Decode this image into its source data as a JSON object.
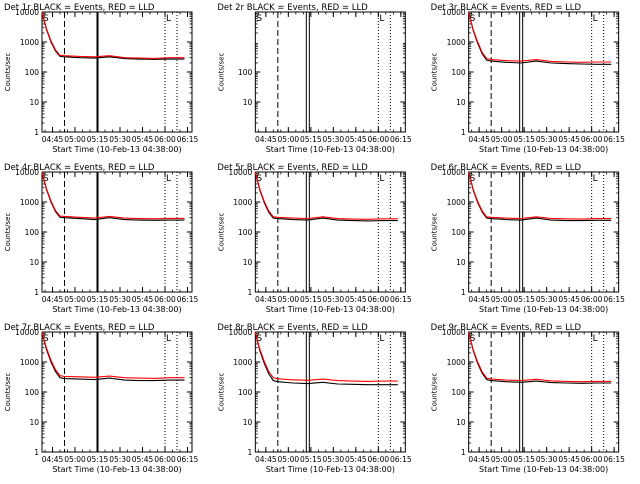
{
  "chart_data": [
    {
      "type": "line",
      "title": "Det 1r BLACK = Events, RED = LLD",
      "xlabel": "Start Time (10-Feb-13 04:38:00)",
      "ylabel": "Counts/sec",
      "yscale": "log",
      "ylim": [
        1,
        10000
      ],
      "xlim_minutes": [
        0,
        100
      ],
      "x_ticks": [
        "04:45",
        "05:00",
        "05:15",
        "05:30",
        "05:45",
        "06:00",
        "06:15"
      ],
      "y_ticks": [
        "1",
        "10",
        "100",
        "1000",
        "10000"
      ],
      "corner_marks": [
        "S",
        "L"
      ],
      "vlines": [
        {
          "minutes": 15,
          "style": "dashed"
        },
        {
          "minutes": 37,
          "style": "solid-thick"
        },
        {
          "minutes": 82,
          "style": "dotted"
        },
        {
          "minutes": 90,
          "style": "dotted"
        }
      ],
      "series": [
        {
          "color": "#000000",
          "x": [
            0,
            3,
            6,
            9,
            12,
            15,
            25,
            35,
            45,
            55,
            65,
            75,
            85,
            95
          ],
          "values": [
            10000,
            2600,
            1000,
            500,
            330,
            320,
            300,
            290,
            320,
            280,
            270,
            265,
            270,
            270
          ]
        },
        {
          "color": "#ff0000",
          "x": [
            0,
            3,
            6,
            9,
            12,
            15,
            25,
            35,
            45,
            55,
            65,
            75,
            85,
            95
          ],
          "values": [
            10000,
            2800,
            1100,
            550,
            360,
            350,
            330,
            320,
            350,
            300,
            290,
            285,
            300,
            300
          ]
        }
      ]
    },
    {
      "type": "line",
      "title": "Det 2r BLACK = Events, RED = LLD",
      "xlabel": "Start Time (10-Feb-13 04:38:00)",
      "ylabel": "Counts/sec",
      "yscale": "log",
      "ylim": [
        1,
        10000
      ],
      "xlim_minutes": [
        0,
        100
      ],
      "x_ticks": [
        "04:45",
        "05:00",
        "05:15",
        "05:30",
        "05:45",
        "06:00",
        "06:15"
      ],
      "y_ticks": [
        "10",
        "100"
      ],
      "corner_marks": [
        "S",
        "L"
      ],
      "vlines": [
        {
          "minutes": 15,
          "style": "dashed"
        },
        {
          "minutes": 34,
          "style": "solid"
        },
        {
          "minutes": 36,
          "style": "solid"
        },
        {
          "minutes": 82,
          "style": "dotted"
        },
        {
          "minutes": 90,
          "style": "dotted"
        }
      ],
      "series": []
    },
    {
      "type": "line",
      "title": "Det 3r BLACK = Events, RED = LLD",
      "xlabel": "Start Time (10-Feb-13 04:38:00)",
      "ylabel": "Counts/sec",
      "yscale": "log",
      "ylim": [
        1,
        10000
      ],
      "xlim_minutes": [
        0,
        100
      ],
      "x_ticks": [
        "04:45",
        "05:00",
        "05:15",
        "05:30",
        "05:45",
        "06:00",
        "06:15"
      ],
      "y_ticks": [
        "1",
        "10",
        "100",
        "1000",
        "10000"
      ],
      "corner_marks": [
        "S",
        "L"
      ],
      "vlines": [
        {
          "minutes": 15,
          "style": "dashed"
        },
        {
          "minutes": 34,
          "style": "solid"
        },
        {
          "minutes": 36,
          "style": "solid"
        },
        {
          "minutes": 82,
          "style": "dotted"
        },
        {
          "minutes": 90,
          "style": "dotted"
        }
      ],
      "series": [
        {
          "color": "#000000",
          "x": [
            0,
            3,
            6,
            9,
            12,
            15,
            25,
            35,
            45,
            55,
            65,
            75,
            85,
            95
          ],
          "values": [
            10000,
            2400,
            900,
            400,
            250,
            230,
            210,
            200,
            230,
            200,
            190,
            185,
            180,
            180
          ]
        },
        {
          "color": "#ff0000",
          "x": [
            0,
            3,
            6,
            9,
            12,
            15,
            25,
            35,
            45,
            55,
            65,
            75,
            85,
            95
          ],
          "values": [
            10000,
            2600,
            1000,
            450,
            280,
            260,
            240,
            230,
            260,
            225,
            215,
            210,
            215,
            215
          ]
        }
      ]
    },
    {
      "type": "line",
      "title": "Det 4r BLACK = Events, RED = LLD",
      "xlabel": "Start Time (10-Feb-13 04:38:00)",
      "ylabel": "Counts/sec",
      "yscale": "log",
      "ylim": [
        1,
        10000
      ],
      "xlim_minutes": [
        0,
        100
      ],
      "x_ticks": [
        "04:45",
        "05:00",
        "05:15",
        "05:30",
        "05:45",
        "06:00",
        "06:15"
      ],
      "y_ticks": [
        "1",
        "10",
        "100",
        "1000",
        "10000"
      ],
      "corner_marks": [
        "S",
        "L"
      ],
      "vlines": [
        {
          "minutes": 15,
          "style": "dashed"
        },
        {
          "minutes": 37,
          "style": "solid-thick"
        },
        {
          "minutes": 82,
          "style": "dotted"
        },
        {
          "minutes": 90,
          "style": "dotted"
        }
      ],
      "series": [
        {
          "color": "#000000",
          "x": [
            0,
            3,
            6,
            9,
            12,
            15,
            25,
            35,
            45,
            55,
            65,
            75,
            85,
            95
          ],
          "values": [
            10000,
            2600,
            1000,
            480,
            310,
            300,
            280,
            260,
            300,
            260,
            250,
            245,
            250,
            250
          ]
        },
        {
          "color": "#ff0000",
          "x": [
            0,
            3,
            6,
            9,
            12,
            15,
            25,
            35,
            45,
            55,
            65,
            75,
            85,
            95
          ],
          "values": [
            10000,
            2800,
            1100,
            520,
            340,
            330,
            310,
            290,
            330,
            290,
            280,
            275,
            285,
            285
          ]
        }
      ]
    },
    {
      "type": "line",
      "title": "Det 5r BLACK = Events, RED = LLD",
      "xlabel": "Start Time (10-Feb-13 04:38:00)",
      "ylabel": "Counts/sec",
      "yscale": "log",
      "ylim": [
        1,
        10000
      ],
      "xlim_minutes": [
        0,
        100
      ],
      "x_ticks": [
        "04:45",
        "05:00",
        "05:15",
        "05:30",
        "05:45",
        "06:00",
        "06:15"
      ],
      "y_ticks": [
        "1",
        "10",
        "100",
        "1000",
        "10000"
      ],
      "corner_marks": [
        "S",
        "L"
      ],
      "vlines": [
        {
          "minutes": 15,
          "style": "dashed"
        },
        {
          "minutes": 34,
          "style": "solid"
        },
        {
          "minutes": 36,
          "style": "solid"
        },
        {
          "minutes": 82,
          "style": "dotted"
        },
        {
          "minutes": 90,
          "style": "dotted"
        }
      ],
      "series": [
        {
          "color": "#000000",
          "x": [
            0,
            3,
            6,
            9,
            12,
            15,
            25,
            35,
            45,
            55,
            65,
            75,
            85,
            95
          ],
          "values": [
            10000,
            2500,
            950,
            450,
            290,
            280,
            260,
            250,
            290,
            250,
            240,
            235,
            240,
            240
          ]
        },
        {
          "color": "#ff0000",
          "x": [
            0,
            3,
            6,
            9,
            12,
            15,
            25,
            35,
            45,
            55,
            65,
            75,
            85,
            95
          ],
          "values": [
            10000,
            2700,
            1050,
            500,
            320,
            310,
            290,
            280,
            320,
            280,
            270,
            265,
            275,
            275
          ]
        }
      ]
    },
    {
      "type": "line",
      "title": "Det 6r BLACK = Events, RED = LLD",
      "xlabel": "Start Time (10-Feb-13 04:38:00)",
      "ylabel": "Counts/sec",
      "yscale": "log",
      "ylim": [
        1,
        10000
      ],
      "xlim_minutes": [
        0,
        100
      ],
      "x_ticks": [
        "04:45",
        "05:00",
        "05:15",
        "05:30",
        "05:45",
        "06:00",
        "06:15"
      ],
      "y_ticks": [
        "1",
        "10",
        "100",
        "1000",
        "10000"
      ],
      "corner_marks": [
        "S",
        "L"
      ],
      "vlines": [
        {
          "minutes": 15,
          "style": "dashed"
        },
        {
          "minutes": 34,
          "style": "solid"
        },
        {
          "minutes": 36,
          "style": "solid"
        },
        {
          "minutes": 82,
          "style": "dotted"
        },
        {
          "minutes": 90,
          "style": "dotted"
        }
      ],
      "series": [
        {
          "color": "#000000",
          "x": [
            0,
            3,
            6,
            9,
            12,
            15,
            25,
            35,
            45,
            55,
            65,
            75,
            85,
            95
          ],
          "values": [
            10000,
            2500,
            950,
            460,
            290,
            280,
            260,
            250,
            290,
            250,
            240,
            240,
            245,
            245
          ]
        },
        {
          "color": "#ff0000",
          "x": [
            0,
            3,
            6,
            9,
            12,
            15,
            25,
            35,
            45,
            55,
            65,
            75,
            85,
            95
          ],
          "values": [
            10000,
            2700,
            1050,
            510,
            320,
            310,
            290,
            280,
            320,
            285,
            275,
            270,
            280,
            280
          ]
        }
      ]
    },
    {
      "type": "line",
      "title": "Det 7r BLACK = Events, RED = LLD",
      "xlabel": "Start Time (10-Feb-13 04:38:00)",
      "ylabel": "Counts/sec",
      "yscale": "log",
      "ylim": [
        1,
        10000
      ],
      "xlim_minutes": [
        0,
        100
      ],
      "x_ticks": [
        "04:45",
        "05:00",
        "05:15",
        "05:30",
        "05:45",
        "06:00",
        "06:15"
      ],
      "y_ticks": [
        "1",
        "10",
        "100",
        "1000",
        "10000"
      ],
      "corner_marks": [
        "S",
        "L"
      ],
      "vlines": [
        {
          "minutes": 15,
          "style": "dashed"
        },
        {
          "minutes": 37,
          "style": "solid-thick"
        },
        {
          "minutes": 82,
          "style": "dotted"
        },
        {
          "minutes": 90,
          "style": "dotted"
        }
      ],
      "series": [
        {
          "color": "#000000",
          "x": [
            0,
            3,
            6,
            9,
            12,
            15,
            25,
            35,
            45,
            55,
            65,
            75,
            85,
            95
          ],
          "values": [
            10000,
            2600,
            1000,
            480,
            300,
            280,
            270,
            260,
            290,
            250,
            240,
            240,
            250,
            250
          ]
        },
        {
          "color": "#ff0000",
          "x": [
            0,
            3,
            6,
            9,
            12,
            15,
            25,
            35,
            45,
            55,
            65,
            75,
            85,
            95
          ],
          "values": [
            10000,
            2900,
            1150,
            560,
            350,
            330,
            320,
            310,
            340,
            300,
            290,
            285,
            300,
            300
          ]
        }
      ]
    },
    {
      "type": "line",
      "title": "Det 8r BLACK = Events, RED = LLD",
      "xlabel": "Start Time (10-Feb-13 04:38:00)",
      "ylabel": "Counts/sec",
      "yscale": "log",
      "ylim": [
        1,
        10000
      ],
      "xlim_minutes": [
        0,
        100
      ],
      "x_ticks": [
        "04:45",
        "05:00",
        "05:15",
        "05:30",
        "05:45",
        "06:00",
        "06:15"
      ],
      "y_ticks": [
        "1",
        "10",
        "100",
        "1000",
        "10000"
      ],
      "corner_marks": [
        "S",
        "L"
      ],
      "vlines": [
        {
          "minutes": 15,
          "style": "dashed"
        },
        {
          "minutes": 34,
          "style": "solid"
        },
        {
          "minutes": 36,
          "style": "solid"
        },
        {
          "minutes": 82,
          "style": "dotted"
        },
        {
          "minutes": 90,
          "style": "dotted"
        }
      ],
      "series": [
        {
          "color": "#000000",
          "x": [
            0,
            3,
            6,
            9,
            12,
            15,
            25,
            35,
            45,
            55,
            65,
            75,
            85,
            95
          ],
          "values": [
            10000,
            2400,
            900,
            400,
            240,
            220,
            200,
            190,
            210,
            185,
            180,
            175,
            175,
            175
          ]
        },
        {
          "color": "#ff0000",
          "x": [
            0,
            3,
            6,
            9,
            12,
            15,
            25,
            35,
            45,
            55,
            65,
            75,
            85,
            95
          ],
          "values": [
            10000,
            2700,
            1050,
            480,
            300,
            275,
            255,
            245,
            270,
            240,
            230,
            225,
            230,
            230
          ]
        }
      ]
    },
    {
      "type": "line",
      "title": "Det 9r BLACK = Events, RED = LLD",
      "xlabel": "Start Time (10-Feb-13 04:38:00)",
      "ylabel": "Counts/sec",
      "yscale": "log",
      "ylim": [
        1,
        10000
      ],
      "xlim_minutes": [
        0,
        100
      ],
      "x_ticks": [
        "04:45",
        "05:00",
        "05:15",
        "05:30",
        "05:45",
        "06:00",
        "06:15"
      ],
      "y_ticks": [
        "1",
        "10",
        "100",
        "1000",
        "10000"
      ],
      "corner_marks": [
        "S",
        "L"
      ],
      "vlines": [
        {
          "minutes": 15,
          "style": "dashed"
        },
        {
          "minutes": 34,
          "style": "solid"
        },
        {
          "minutes": 36,
          "style": "solid"
        },
        {
          "minutes": 82,
          "style": "dotted"
        },
        {
          "minutes": 90,
          "style": "dotted"
        }
      ],
      "series": [
        {
          "color": "#000000",
          "x": [
            0,
            3,
            6,
            9,
            12,
            15,
            25,
            35,
            45,
            55,
            65,
            75,
            85,
            95
          ],
          "values": [
            10000,
            2400,
            900,
            420,
            260,
            240,
            220,
            210,
            230,
            205,
            200,
            195,
            200,
            200
          ]
        },
        {
          "color": "#ff0000",
          "x": [
            0,
            3,
            6,
            9,
            12,
            15,
            25,
            35,
            45,
            55,
            65,
            75,
            85,
            95
          ],
          "values": [
            10000,
            2600,
            1000,
            470,
            290,
            270,
            250,
            240,
            265,
            235,
            225,
            220,
            225,
            225
          ]
        }
      ]
    }
  ]
}
